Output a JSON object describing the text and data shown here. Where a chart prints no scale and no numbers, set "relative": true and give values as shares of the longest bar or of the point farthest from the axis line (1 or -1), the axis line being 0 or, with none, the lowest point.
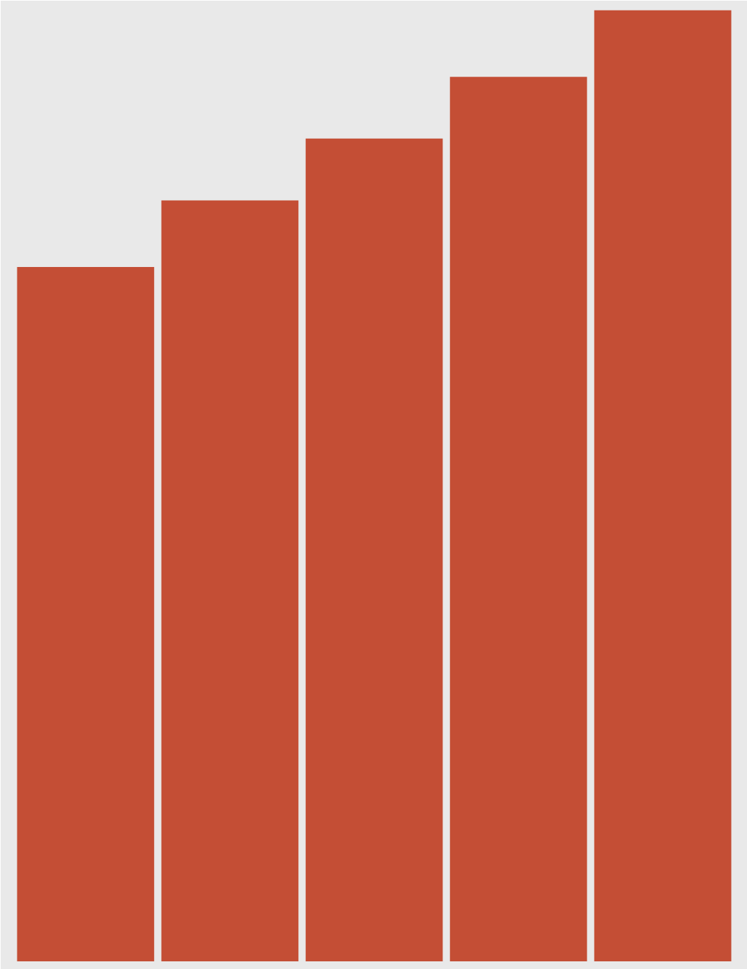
{
  "chart_data": {
    "type": "bar",
    "relative": true,
    "categories": [
      null,
      null,
      null,
      null,
      null
    ],
    "values": [
      0.73,
      0.8,
      0.865,
      0.93,
      1.0
    ],
    "color": "#c44e35"
  }
}
